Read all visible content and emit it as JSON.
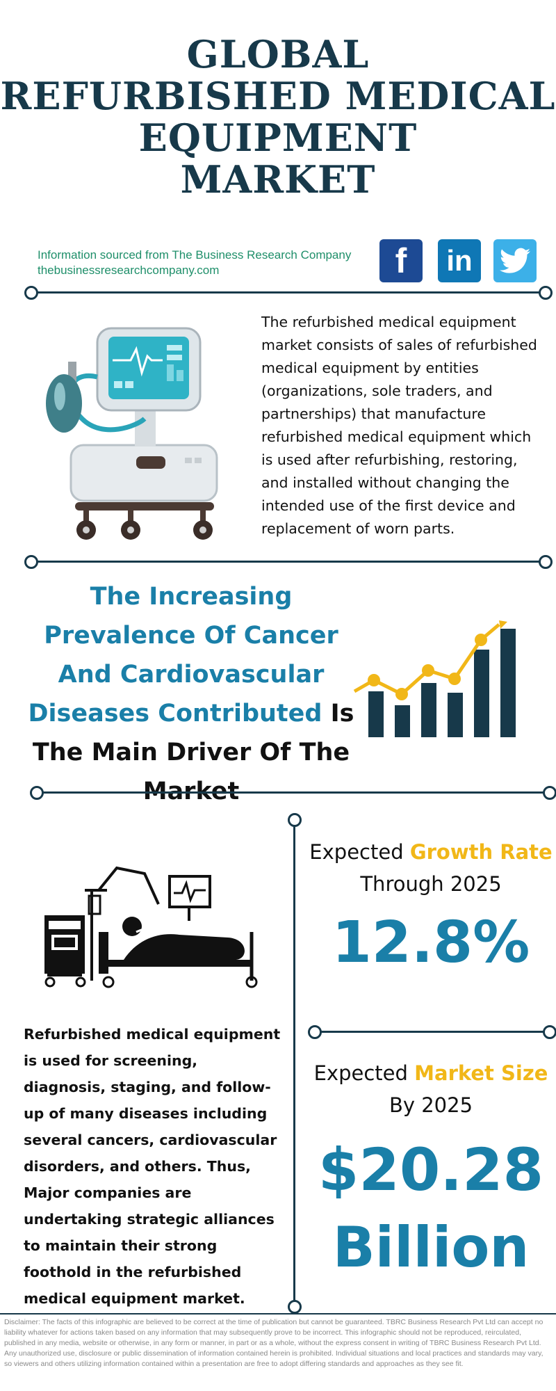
{
  "title": {
    "line1": "GLOBAL",
    "line2": "REFURBISHED MEDICAL",
    "line3": "EQUIPMENT",
    "line4": "MARKET"
  },
  "source": {
    "line1": "Information sourced from The Business Research Company",
    "line2": "thebusinessresearchcompany.com"
  },
  "social": {
    "facebook_label": "f",
    "linkedin_label": "in",
    "icons": [
      "facebook-icon",
      "linkedin-icon",
      "twitter-icon"
    ]
  },
  "intro_text": "The refurbished medical equipment market consists of sales of refurbished medical equipment by entities (organizations, sole traders, and partnerships) that manufacture refurbished medical equipment which is used after refurbishing, restoring, and installed without changing the intended use of the first device and replacement of worn parts.",
  "driver": {
    "highlight": "The Increasing Prevalence Of Cancer And Cardiovascular Diseases Contributed",
    "rest": " Is The Main Driver Of The Market"
  },
  "description": "Refurbished medical equipment is used for screening, diagnosis, staging, and follow-up of many diseases including several cancers, cardiovascular disorders, and others. Thus, Major companies are undertaking strategic alliances to maintain their strong foothold in the refurbished medical equipment market.",
  "growth": {
    "prefix": "Expected ",
    "highlight": "Growth Rate",
    "suffix": "Through 2025",
    "value": "12.8%"
  },
  "market_size": {
    "prefix": "Expected ",
    "highlight": "Market Size",
    "suffix": "By 2025",
    "value": "$20.28",
    "unit": "Billion"
  },
  "disclaimer": "Disclaimer: The facts of this infographic are believed to be correct at the time of publication but cannot be guaranteed. TBRC Business Research Pvt Ltd can accept no liability whatever for actions taken based on any information that may subsequently prove to be incorrect. This infographic should not be reproduced, reirculated, published in any media, website or otherwise, in any form or manner, in part or as a whole, without the express consent in writing of TBRC Business Research Pvt Ltd. Any unauthorized use, disclosure or public dissemination of information contained herein is prohibited. Individual situations and local practices and standards may vary, so viewers and others utilizing information contained within a presentation are free to adopt differing standards and approaches as they see fit.",
  "colors": {
    "navy": "#17394a",
    "blue": "#1a7fa8",
    "gold": "#f1b718",
    "green": "#1f8f6a"
  }
}
